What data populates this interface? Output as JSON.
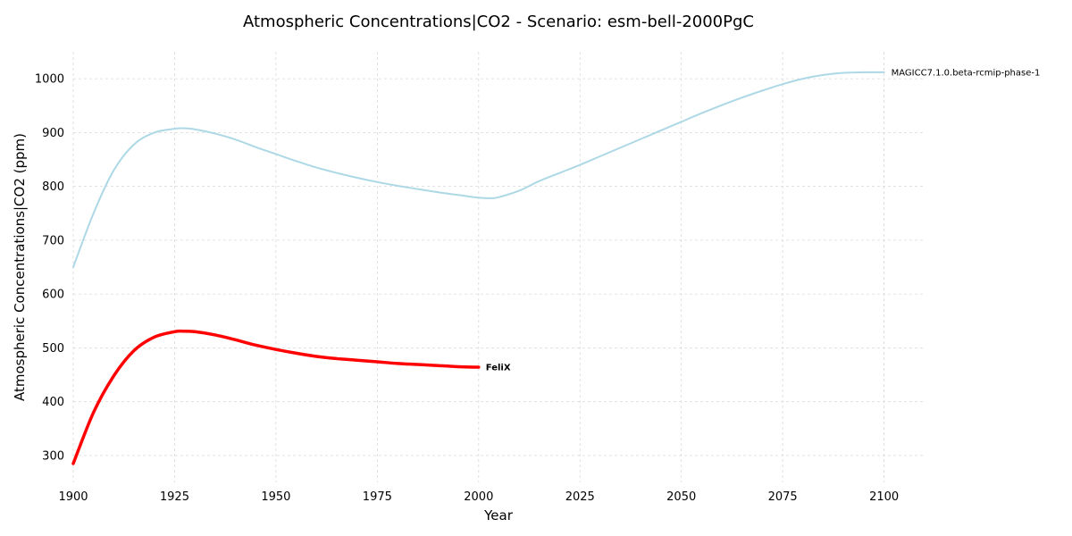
{
  "chart_data": {
    "type": "line",
    "title": "Atmospheric Concentrations|CO2 - Scenario: esm-bell-2000PgC",
    "xlabel": "Year",
    "ylabel": "Atmospheric Concentrations|CO2 (ppm)",
    "xlim": [
      1900,
      2110
    ],
    "ylim": [
      250,
      1050
    ],
    "xticks": [
      1900,
      1925,
      1950,
      1975,
      2000,
      2025,
      2050,
      2075,
      2100
    ],
    "yticks": [
      300,
      400,
      500,
      600,
      700,
      800,
      900,
      1000
    ],
    "grid": true,
    "legend": "none",
    "series": [
      {
        "name": "MAGICC7.1.0.beta-rcmip-phase-1",
        "color": "#add8e6",
        "width": 2,
        "bold_label": false,
        "x": [
          1900,
          1905,
          1910,
          1915,
          1920,
          1925,
          1927,
          1930,
          1935,
          1940,
          1945,
          1950,
          1955,
          1960,
          1965,
          1970,
          1975,
          1980,
          1985,
          1990,
          1995,
          2000,
          2003,
          2005,
          2010,
          2015,
          2020,
          2025,
          2030,
          2035,
          2040,
          2045,
          2050,
          2055,
          2060,
          2065,
          2070,
          2075,
          2080,
          2085,
          2090,
          2095,
          2100
        ],
        "y": [
          650,
          750,
          830,
          878,
          900,
          907,
          908,
          906,
          898,
          887,
          873,
          860,
          847,
          835,
          825,
          816,
          808,
          801,
          795,
          789,
          784,
          779,
          778,
          780,
          792,
          810,
          825,
          840,
          856,
          872,
          888,
          904,
          920,
          936,
          951,
          965,
          978,
          990,
          1000,
          1007,
          1011,
          1012,
          1012
        ]
      },
      {
        "name": "FeliX",
        "color": "#ff0000",
        "width": 3.5,
        "bold_label": true,
        "x": [
          1900,
          1905,
          1910,
          1915,
          1920,
          1925,
          1927,
          1930,
          1935,
          1940,
          1945,
          1950,
          1955,
          1960,
          1965,
          1970,
          1975,
          1980,
          1985,
          1990,
          1995,
          2000
        ],
        "y": [
          285,
          380,
          448,
          495,
          520,
          530,
          531,
          530,
          524,
          515,
          505,
          497,
          490,
          484,
          480,
          477,
          474,
          471,
          469,
          467,
          465,
          464
        ]
      }
    ]
  }
}
